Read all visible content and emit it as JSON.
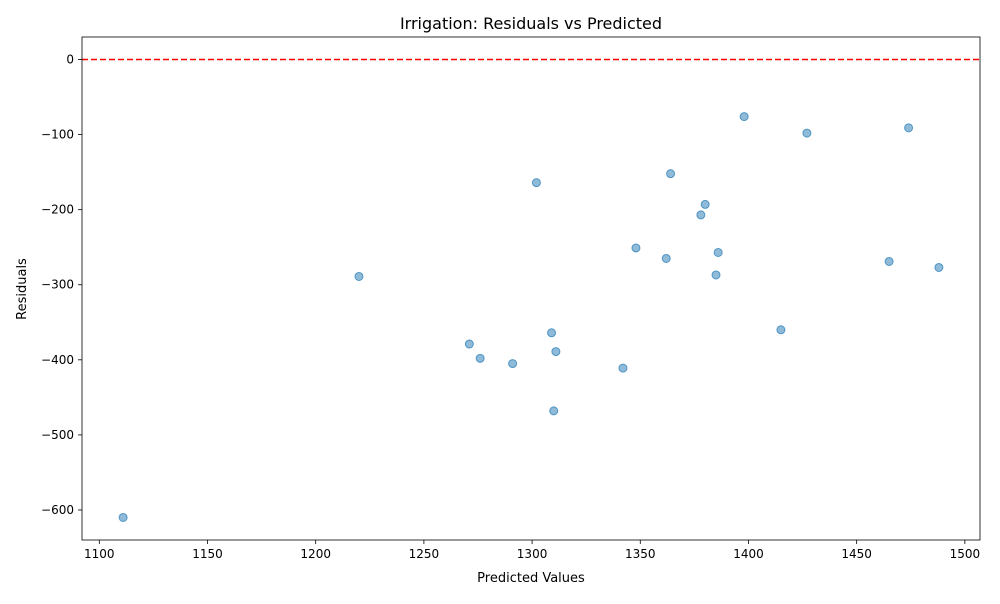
{
  "chart_data": {
    "type": "scatter",
    "title": "Irrigation: Residuals vs Predicted",
    "xlabel": "Predicted Values",
    "ylabel": "Residuals",
    "xlim": [
      1092,
      1507
    ],
    "ylim": [
      -640,
      30
    ],
    "xticks": [
      1100,
      1150,
      1200,
      1250,
      1300,
      1350,
      1400,
      1450,
      1500
    ],
    "yticks": [
      0,
      -100,
      -200,
      -300,
      -400,
      -500,
      -600
    ],
    "grid": false,
    "reference_line": {
      "y": 0,
      "color": "#ff0000",
      "style": "dashed"
    },
    "point_color": "#1f77b4",
    "point_opacity": 0.5,
    "points": [
      {
        "x": 1111,
        "y": -610
      },
      {
        "x": 1220,
        "y": -289
      },
      {
        "x": 1271,
        "y": -379
      },
      {
        "x": 1276,
        "y": -398
      },
      {
        "x": 1291,
        "y": -405
      },
      {
        "x": 1302,
        "y": -164
      },
      {
        "x": 1309,
        "y": -364
      },
      {
        "x": 1310,
        "y": -468
      },
      {
        "x": 1311,
        "y": -389
      },
      {
        "x": 1342,
        "y": -411
      },
      {
        "x": 1348,
        "y": -251
      },
      {
        "x": 1362,
        "y": -265
      },
      {
        "x": 1364,
        "y": -152
      },
      {
        "x": 1378,
        "y": -207
      },
      {
        "x": 1380,
        "y": -193
      },
      {
        "x": 1385,
        "y": -287
      },
      {
        "x": 1386,
        "y": -257
      },
      {
        "x": 1398,
        "y": -76
      },
      {
        "x": 1415,
        "y": -360
      },
      {
        "x": 1427,
        "y": -98
      },
      {
        "x": 1465,
        "y": -269
      },
      {
        "x": 1474,
        "y": -91
      },
      {
        "x": 1488,
        "y": -277
      }
    ]
  }
}
